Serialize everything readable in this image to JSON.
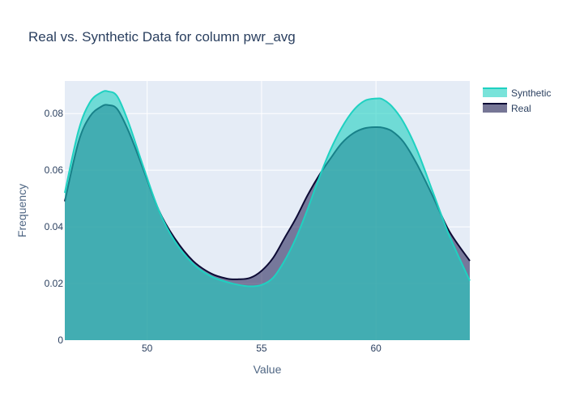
{
  "chart_data": {
    "type": "area",
    "title": "Real vs. Synthetic Data for column pwr_avg",
    "xlabel": "Value",
    "ylabel": "Frequency",
    "xlim": [
      46.4,
      64.1
    ],
    "ylim": [
      0,
      0.0915
    ],
    "x_ticks": [
      50,
      55,
      60
    ],
    "x_tick_labels": [
      "50",
      "55",
      "60"
    ],
    "y_ticks": [
      0,
      0.02,
      0.04,
      0.06,
      0.08
    ],
    "y_tick_labels": [
      "0",
      "0.02",
      "0.04",
      "0.06",
      "0.08"
    ],
    "grid": true,
    "legend_position": "top-right",
    "x": [
      46.4,
      47.0,
      47.5,
      48.0,
      48.3,
      48.7,
      49.2,
      49.8,
      50.5,
      51.2,
      52.0,
      52.8,
      53.5,
      54.0,
      54.5,
      55.0,
      55.5,
      56.0,
      56.5,
      57.0,
      57.5,
      58.0,
      58.5,
      59.0,
      59.5,
      60.0,
      60.3,
      60.7,
      61.2,
      61.8,
      62.5,
      63.2,
      64.1
    ],
    "series": [
      {
        "name": "Synthetic",
        "color": "#1fd1c1",
        "fill": "#1fd1c1",
        "values": [
          0.052,
          0.074,
          0.084,
          0.0875,
          0.0878,
          0.086,
          0.0765,
          0.062,
          0.046,
          0.035,
          0.027,
          0.0225,
          0.0205,
          0.0195,
          0.019,
          0.0195,
          0.022,
          0.028,
          0.036,
          0.046,
          0.057,
          0.067,
          0.075,
          0.081,
          0.0845,
          0.0853,
          0.085,
          0.0825,
          0.077,
          0.067,
          0.052,
          0.037,
          0.021
        ]
      },
      {
        "name": "Real",
        "color": "#0d0b35",
        "fill": "#1b1a50",
        "values": [
          0.049,
          0.07,
          0.079,
          0.0825,
          0.083,
          0.0815,
          0.0735,
          0.061,
          0.046,
          0.036,
          0.028,
          0.0235,
          0.0217,
          0.0215,
          0.022,
          0.0245,
          0.029,
          0.036,
          0.043,
          0.051,
          0.058,
          0.064,
          0.0695,
          0.073,
          0.0748,
          0.0752,
          0.075,
          0.0738,
          0.07,
          0.062,
          0.0505,
          0.0385,
          0.028
        ]
      }
    ]
  }
}
